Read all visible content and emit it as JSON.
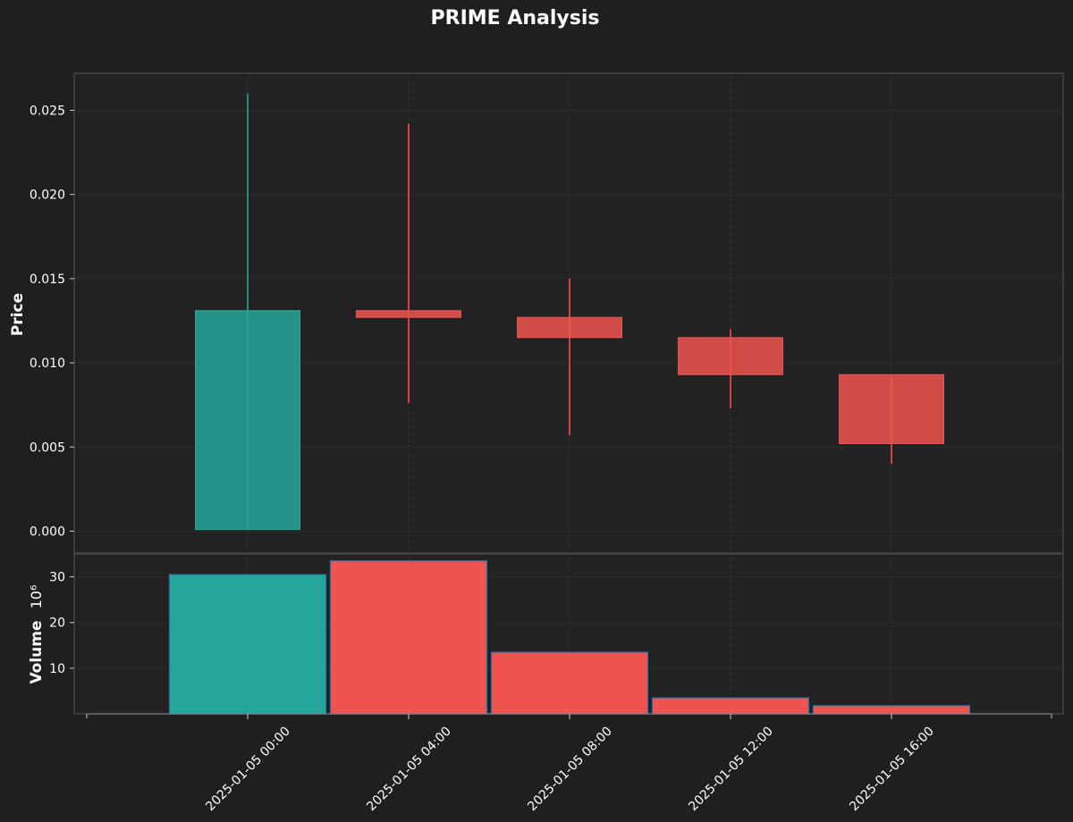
{
  "chart_data": {
    "type": "candlestick",
    "title": "PRIME Analysis",
    "price_panel": {
      "ylabel": "Price",
      "ylim": [
        -0.0013,
        0.0272
      ],
      "yticks": [
        0.0,
        0.005,
        0.01,
        0.015,
        0.02,
        0.025
      ],
      "ytick_labels": [
        "0.000",
        "0.005",
        "0.010",
        "0.015",
        "0.020",
        "0.025"
      ],
      "grid": true
    },
    "volume_panel": {
      "ylabel": "Volume",
      "scale_label": "10⁶",
      "ylim": [
        0,
        35
      ],
      "yticks": [
        10,
        20,
        30
      ],
      "ytick_labels": [
        "10",
        "20",
        "30"
      ],
      "grid": true
    },
    "x_tick_labels": [
      "2025-01-05 00:00",
      "2025-01-05 04:00",
      "2025-01-05 08:00",
      "2025-01-05 12:00",
      "2025-01-05 16:00"
    ],
    "candles": [
      {
        "time": "2025-01-05 00:00",
        "open": 0.0001,
        "high": 0.026,
        "low": 0.0001,
        "close": 0.0131,
        "volume": 30.5,
        "direction": "up"
      },
      {
        "time": "2025-01-05 04:00",
        "open": 0.0131,
        "high": 0.0242,
        "low": 0.0076,
        "close": 0.0127,
        "volume": 33.5,
        "direction": "down"
      },
      {
        "time": "2025-01-05 08:00",
        "open": 0.0127,
        "high": 0.015,
        "low": 0.0057,
        "close": 0.0115,
        "volume": 13.5,
        "direction": "down"
      },
      {
        "time": "2025-01-05 12:00",
        "open": 0.0115,
        "high": 0.012,
        "low": 0.0073,
        "close": 0.0093,
        "volume": 3.5,
        "direction": "down"
      },
      {
        "time": "2025-01-05 16:00",
        "open": 0.0093,
        "high": 0.0093,
        "low": 0.004,
        "close": 0.0052,
        "volume": 1.8,
        "direction": "down"
      }
    ],
    "colors": {
      "background": "#1f1f1f",
      "panel": "#222222",
      "up": "#26a69a",
      "down": "#ef5350",
      "grid": "#3a3a3a",
      "frame": "#444444",
      "text": "#ffffff",
      "volume_edge": "#2d6fa6"
    }
  }
}
